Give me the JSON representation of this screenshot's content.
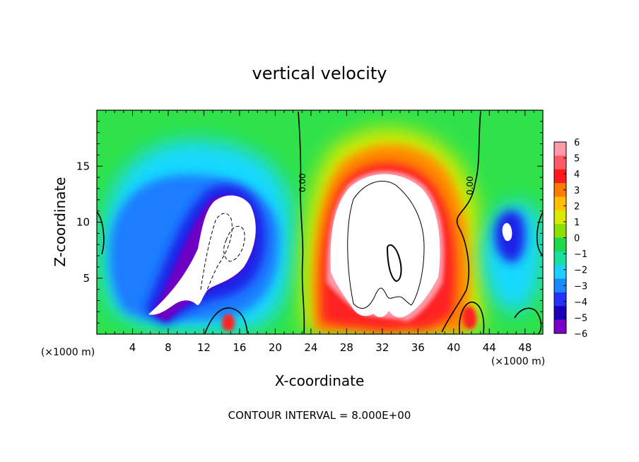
{
  "chart_data": {
    "type": "heatmap",
    "title": "vertical velocity",
    "xlabel": "X-coordinate",
    "ylabel": "Z-coordinate",
    "x_unit_label": "(×1000 m)",
    "x_unit_label_right": "(×1000 m)",
    "footer": "CONTOUR INTERVAL = 8.000E+00",
    "xlim": [
      0,
      50
    ],
    "ylim": [
      0,
      20
    ],
    "x_ticks": [
      4,
      8,
      12,
      16,
      20,
      24,
      28,
      32,
      36,
      40,
      44,
      48
    ],
    "y_ticks": [
      5,
      10,
      15
    ],
    "colorbar": {
      "range": [
        -6,
        6
      ],
      "tick_labels": [
        "6",
        "5",
        "4",
        "3",
        "2",
        "1",
        "0",
        "−1",
        "−2",
        "−3",
        "−4",
        "−5",
        "−6"
      ],
      "colors": [
        "#ff9aa6",
        "#ff5a66",
        "#ff1b1b",
        "#ff7a00",
        "#ffbf00",
        "#d8ea00",
        "#8ce000",
        "#1ed94a",
        "#19dfa0",
        "#1fd0ff",
        "#1a88ff",
        "#2232ff",
        "#1a00b8",
        "#7a00c8"
      ]
    },
    "contour_labels": [
      "0.00",
      "0.00"
    ],
    "features": [
      {
        "name": "downdraft",
        "sign": "negative",
        "x_center": 12,
        "z_center": 9
      },
      {
        "name": "updraft",
        "sign": "positive",
        "x_center": 32,
        "z_center": 9
      },
      {
        "name": "right-downdraft",
        "sign": "negative",
        "x_center": 46,
        "z_center": 10
      }
    ],
    "grid": false
  }
}
